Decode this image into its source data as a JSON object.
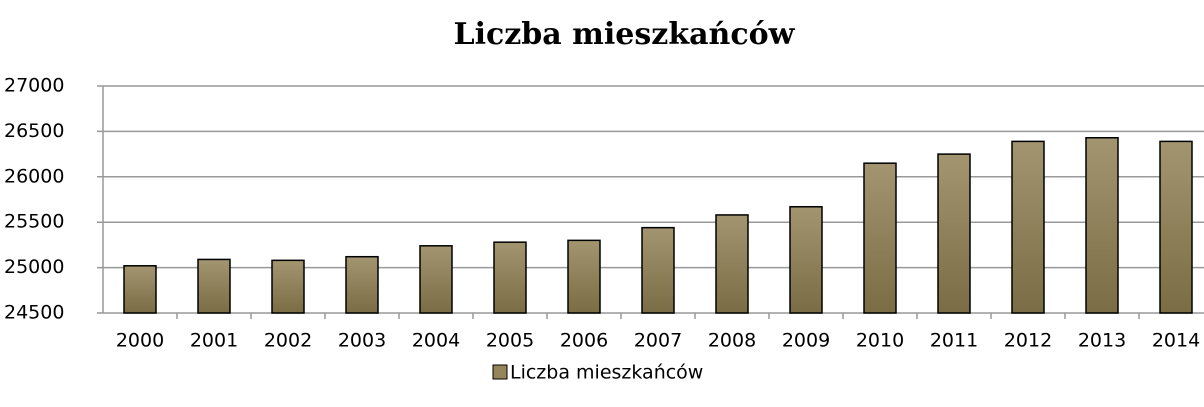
{
  "chart_data": {
    "type": "bar",
    "title": "Liczba mieszkańców",
    "categories": [
      "2000",
      "2001",
      "2002",
      "2003",
      "2004",
      "2005",
      "2006",
      "2007",
      "2008",
      "2009",
      "2010",
      "2011",
      "2012",
      "2013",
      "2014"
    ],
    "series": [
      {
        "name": "Liczba mieszkańców",
        "color": "#948659",
        "values": [
          25020,
          25090,
          25080,
          25120,
          25240,
          25280,
          25300,
          25440,
          25580,
          25670,
          26150,
          26250,
          26390,
          26430,
          26390
        ]
      }
    ],
    "ylim": [
      24500,
      27000
    ],
    "yticks": [
      24500,
      25000,
      25500,
      26000,
      26500,
      27000
    ],
    "grid": true,
    "legend": "bottom"
  }
}
